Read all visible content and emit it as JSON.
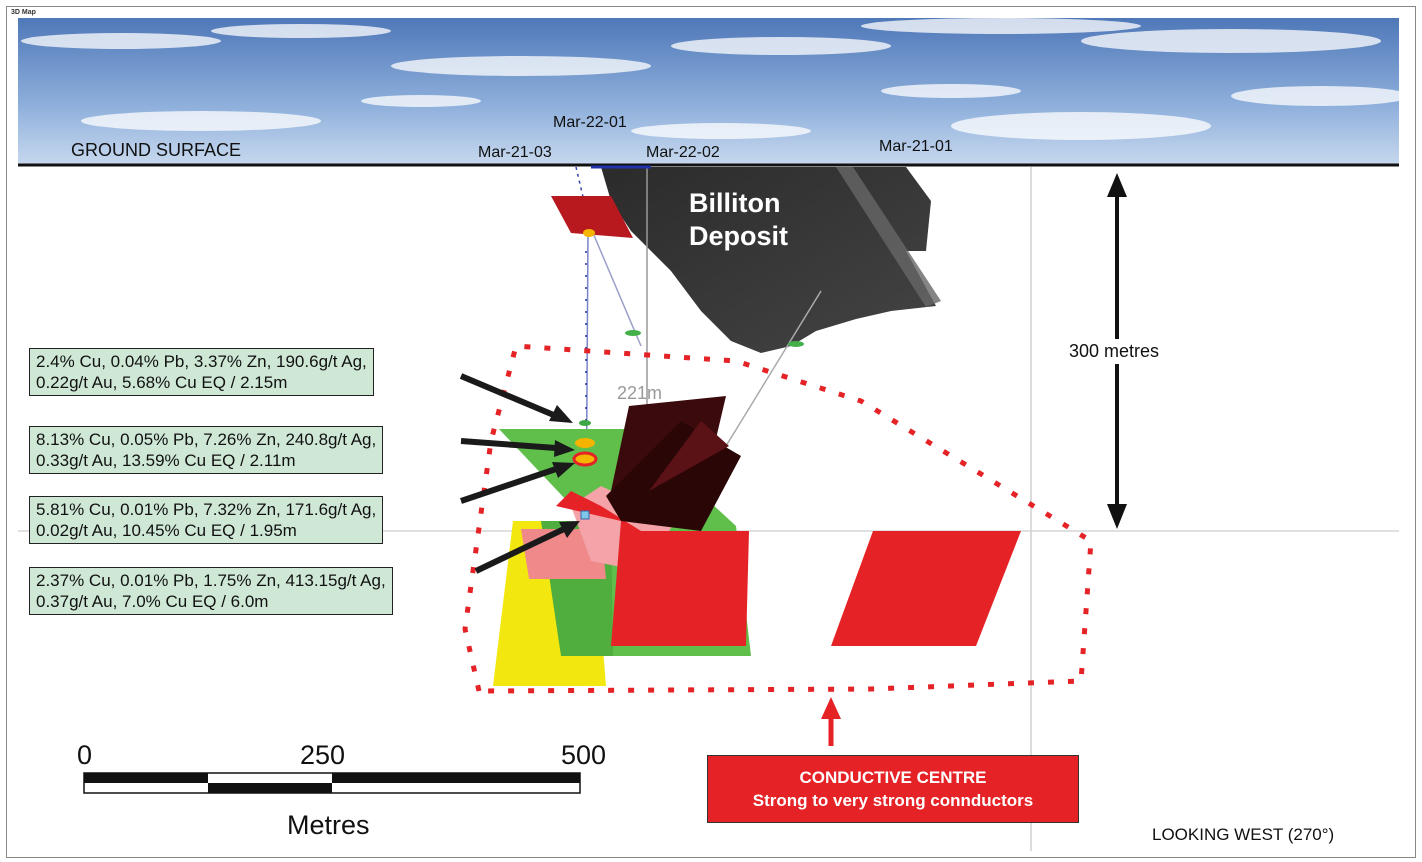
{
  "window": {
    "title": "3D Map"
  },
  "surface": {
    "label": "GROUND SURFACE"
  },
  "drillholes": [
    "Mar-22-01",
    "Mar-21-03",
    "Mar-22-02",
    "Mar-21-01"
  ],
  "deposit": {
    "line1": "Billiton",
    "line2": "Deposit"
  },
  "depth": {
    "label": "300 metres"
  },
  "hole_depth_label": "221m",
  "intercepts": [
    {
      "line1": "2.4% Cu, 0.04% Pb, 3.37% Zn, 190.6g/t Ag,",
      "line2": "0.22g/t Au, 5.68% Cu EQ / 2.15m"
    },
    {
      "line1": "8.13% Cu, 0.05% Pb, 7.26% Zn, 240.8g/t Ag,",
      "line2": "0.33g/t Au, 13.59% Cu EQ / 2.11m"
    },
    {
      "line1": "5.81% Cu, 0.01% Pb, 7.32% Zn, 171.6g/t Ag,",
      "line2": "0.02g/t Au, 10.45% Cu EQ / 1.95m"
    },
    {
      "line1": "2.37% Cu, 0.01% Pb, 1.75% Zn, 413.15g/t Ag,",
      "line2": "0.37g/t Au, 7.0% Cu EQ / 6.0m"
    }
  ],
  "scale": {
    "ticks": [
      "0",
      "250",
      "500"
    ],
    "unit": "Metres"
  },
  "conductive": {
    "title": "CONDUCTIVE CENTRE",
    "subtitle": "Strong to very strong connductors"
  },
  "orientation": {
    "label": "LOOKING WEST (270°)"
  },
  "colors": {
    "red": "#e52226",
    "green": "#5fbf4a",
    "yellow": "#f2e80f",
    "dark_red": "#3a0a0c",
    "callout_bg": "#cfe8d6",
    "deposit": "#333333"
  }
}
